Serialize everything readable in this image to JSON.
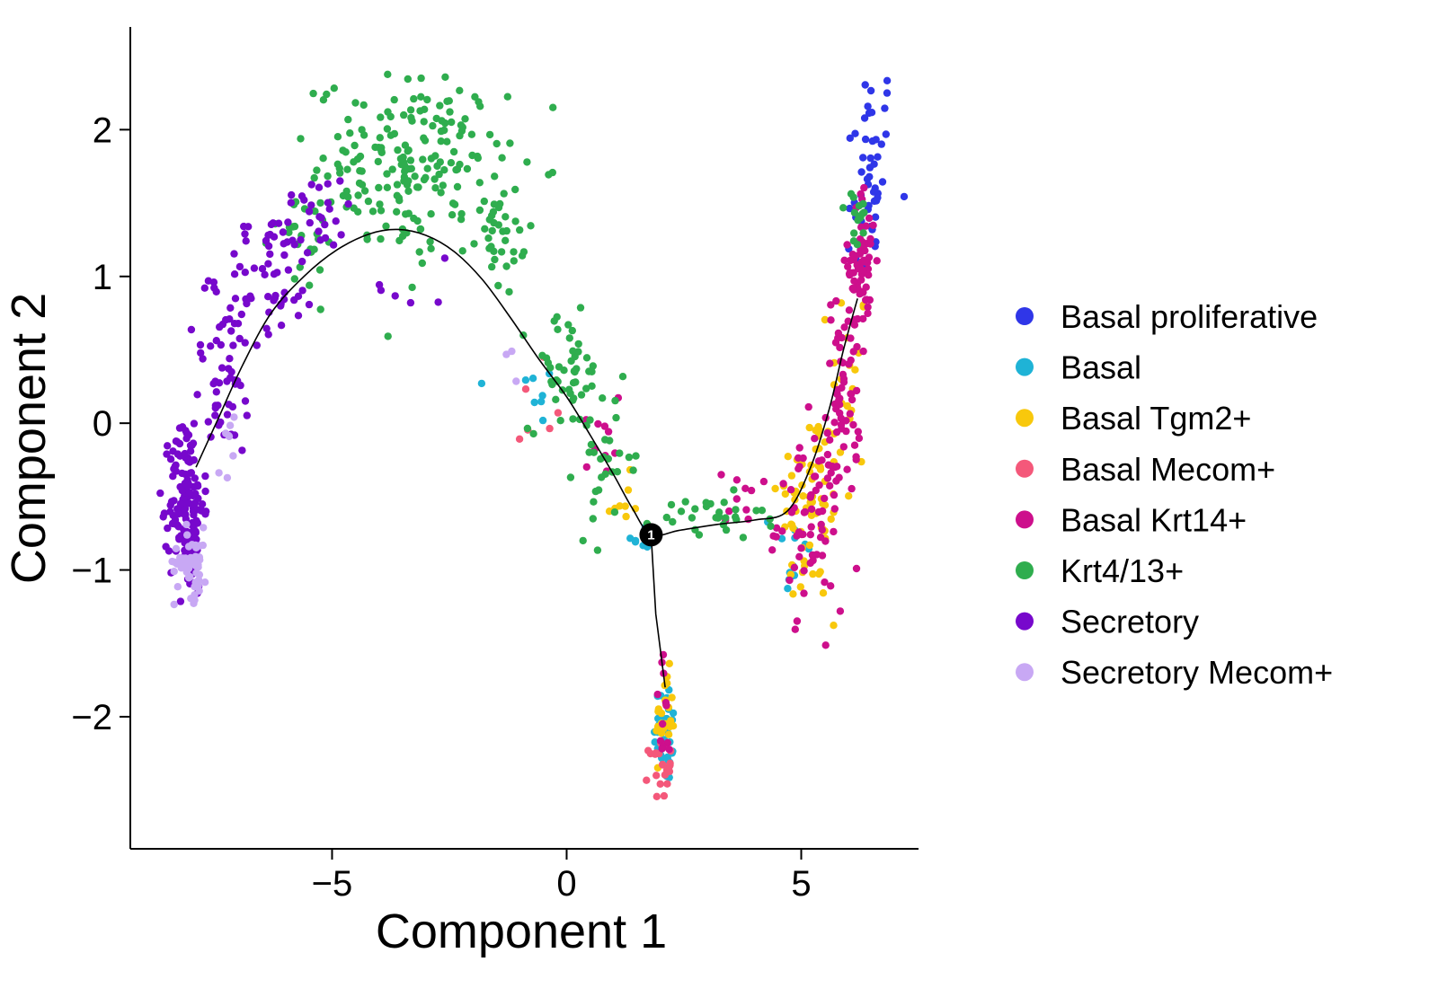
{
  "chart_data": {
    "type": "scatter",
    "title": "",
    "xlabel": "Component 1",
    "ylabel": "Component 2",
    "xlim": [
      -9.3,
      7.5
    ],
    "ylim": [
      -2.9,
      2.7
    ],
    "x_ticks": [
      {
        "value": -5,
        "label": "−5"
      },
      {
        "value": 0,
        "label": "0"
      },
      {
        "value": 5,
        "label": "5"
      }
    ],
    "y_ticks": [
      {
        "value": -2,
        "label": "−2"
      },
      {
        "value": -1,
        "label": "−1"
      },
      {
        "value": 0,
        "label": "0"
      },
      {
        "value": 1,
        "label": "1"
      },
      {
        "value": 2,
        "label": "2"
      }
    ],
    "grid": false,
    "legend_position": "right",
    "trajectory": [
      [
        -7.9,
        -0.3
      ],
      [
        -7.4,
        0.05
      ],
      [
        -6.9,
        0.4
      ],
      [
        -6.3,
        0.75
      ],
      [
        -5.6,
        1.0
      ],
      [
        -4.9,
        1.18
      ],
      [
        -4.2,
        1.29
      ],
      [
        -3.6,
        1.32
      ],
      [
        -3.0,
        1.28
      ],
      [
        -2.4,
        1.17
      ],
      [
        -1.8,
        0.98
      ],
      [
        -1.2,
        0.72
      ],
      [
        -0.6,
        0.44
      ],
      [
        0.0,
        0.18
      ],
      [
        0.5,
        -0.08
      ],
      [
        1.0,
        -0.35
      ],
      [
        1.4,
        -0.58
      ],
      [
        1.8,
        -0.76
      ],
      [
        2.4,
        -0.73
      ],
      [
        3.2,
        -0.69
      ],
      [
        4.0,
        -0.66
      ],
      [
        4.7,
        -0.6
      ],
      [
        5.2,
        -0.3
      ],
      [
        5.6,
        0.1
      ],
      [
        5.9,
        0.5
      ],
      [
        6.2,
        0.85
      ]
    ],
    "branch": [
      [
        1.8,
        -0.76
      ],
      [
        1.9,
        -1.3
      ],
      [
        2.1,
        -1.8
      ]
    ],
    "branch_point": {
      "x": 1.8,
      "y": -0.76,
      "label": "1"
    },
    "series": [
      {
        "name": "Basal proliferative",
        "color": "#2f36e8",
        "clusters": [
          {
            "cx": 6.5,
            "cy": 1.8,
            "sx": 0.25,
            "sy": 0.35,
            "n": 38
          },
          {
            "cx": 6.3,
            "cy": 1.3,
            "sx": 0.2,
            "sy": 0.15,
            "n": 10
          }
        ]
      },
      {
        "name": "Basal",
        "color": "#1fb3d6",
        "clusters": [
          {
            "cx": 2.1,
            "cy": -2.1,
            "sx": 0.12,
            "sy": 0.18,
            "n": 35
          },
          {
            "cx": 4.8,
            "cy": -0.9,
            "sx": 0.2,
            "sy": 0.2,
            "n": 12
          },
          {
            "cx": -0.6,
            "cy": 0.2,
            "sx": 0.3,
            "sy": 0.15,
            "n": 8
          },
          {
            "cx": 1.5,
            "cy": -0.8,
            "sx": 0.2,
            "sy": 0.1,
            "n": 6
          }
        ]
      },
      {
        "name": "Basal Tgm2+",
        "color": "#f8c80c",
        "clusters": [
          {
            "cx": 5.2,
            "cy": -0.55,
            "sx": 0.35,
            "sy": 0.35,
            "n": 70
          },
          {
            "cx": 6.0,
            "cy": 0.3,
            "sx": 0.2,
            "sy": 0.4,
            "n": 20
          },
          {
            "cx": 2.1,
            "cy": -2.0,
            "sx": 0.1,
            "sy": 0.15,
            "n": 25
          },
          {
            "cx": 1.2,
            "cy": -0.55,
            "sx": 0.25,
            "sy": 0.1,
            "n": 8
          }
        ]
      },
      {
        "name": "Basal Mecom+",
        "color": "#f4587a",
        "clusters": [
          {
            "cx": 2.0,
            "cy": -2.35,
            "sx": 0.12,
            "sy": 0.1,
            "n": 22
          },
          {
            "cx": -0.9,
            "cy": 0.1,
            "sx": 0.3,
            "sy": 0.15,
            "n": 6
          }
        ]
      },
      {
        "name": "Basal Krt14+",
        "color": "#cd0f8c",
        "clusters": [
          {
            "cx": 6.3,
            "cy": 1.1,
            "sx": 0.15,
            "sy": 0.25,
            "n": 60
          },
          {
            "cx": 5.9,
            "cy": 0.2,
            "sx": 0.18,
            "sy": 0.35,
            "n": 60
          },
          {
            "cx": 5.2,
            "cy": -0.65,
            "sx": 0.35,
            "sy": 0.3,
            "n": 70
          },
          {
            "cx": 3.8,
            "cy": -0.5,
            "sx": 0.4,
            "sy": 0.1,
            "n": 10
          },
          {
            "cx": 2.1,
            "cy": -2.0,
            "sx": 0.1,
            "sy": 0.2,
            "n": 12
          },
          {
            "cx": 0.8,
            "cy": -0.1,
            "sx": 0.4,
            "sy": 0.25,
            "n": 10
          }
        ]
      },
      {
        "name": "Krt4/13+",
        "color": "#2fad4e",
        "clusters": [
          {
            "cx": -3.3,
            "cy": 1.75,
            "sx": 1.0,
            "sy": 0.3,
            "n": 200
          },
          {
            "cx": -1.4,
            "cy": 1.2,
            "sx": 0.35,
            "sy": 0.2,
            "n": 30
          },
          {
            "cx": 0.0,
            "cy": 0.35,
            "sx": 0.4,
            "sy": 0.2,
            "n": 45
          },
          {
            "cx": 0.9,
            "cy": -0.25,
            "sx": 0.35,
            "sy": 0.25,
            "n": 30
          },
          {
            "cx": 3.0,
            "cy": -0.65,
            "sx": 0.6,
            "sy": 0.08,
            "n": 30
          },
          {
            "cx": 6.2,
            "cy": 1.35,
            "sx": 0.12,
            "sy": 0.12,
            "n": 15
          },
          {
            "cx": -5.8,
            "cy": 1.3,
            "sx": 0.6,
            "sy": 0.2,
            "n": 20
          }
        ]
      },
      {
        "name": "Secretory",
        "color": "#7708cc",
        "clusters": [
          {
            "cx": -8.1,
            "cy": -0.55,
            "sx": 0.18,
            "sy": 0.3,
            "n": 160
          },
          {
            "cx": -7.3,
            "cy": 0.3,
            "sx": 0.35,
            "sy": 0.3,
            "n": 50
          },
          {
            "cx": -6.3,
            "cy": 1.0,
            "sx": 0.5,
            "sy": 0.22,
            "n": 60
          },
          {
            "cx": -5.3,
            "cy": 1.45,
            "sx": 0.4,
            "sy": 0.15,
            "n": 25
          },
          {
            "cx": -3.0,
            "cy": 1.0,
            "sx": 0.6,
            "sy": 0.2,
            "n": 6
          }
        ]
      },
      {
        "name": "Secretory Mecom+",
        "color": "#c8a8f4",
        "clusters": [
          {
            "cx": -8.0,
            "cy": -0.95,
            "sx": 0.18,
            "sy": 0.12,
            "n": 55
          },
          {
            "cx": -7.2,
            "cy": -0.1,
            "sx": 0.25,
            "sy": 0.12,
            "n": 8
          },
          {
            "cx": -1.2,
            "cy": 0.4,
            "sx": 0.1,
            "sy": 0.1,
            "n": 3
          }
        ]
      }
    ]
  }
}
